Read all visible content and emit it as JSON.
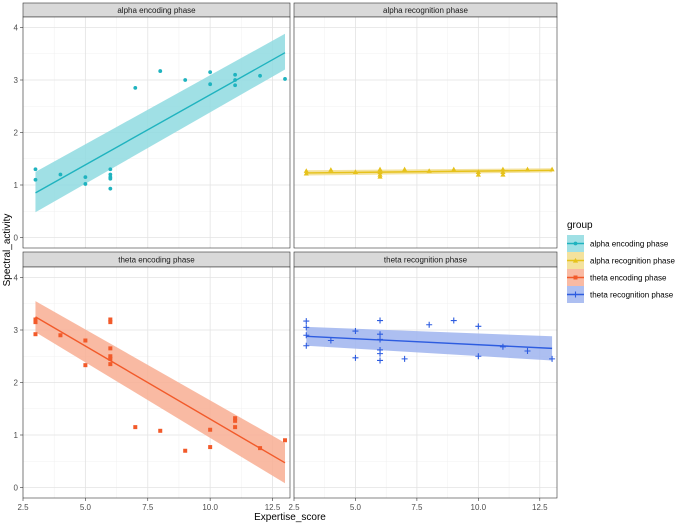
{
  "chart_data": {
    "type": "scatter",
    "facet_type": "scatter-with-linear-fit",
    "xlabel": "Expertise_score",
    "ylabel": "Spectral_activity",
    "xlim": [
      2.5,
      13.2
    ],
    "ylim": [
      -0.2,
      4.2
    ],
    "x_ticks": [
      "2.5",
      "5.0",
      "7.5",
      "10.0",
      "12.5"
    ],
    "y_ticks": [
      "0",
      "1",
      "2",
      "3",
      "4"
    ],
    "grid": true,
    "legend": {
      "title": "group",
      "position": "right",
      "entries": [
        "alpha encoding phase",
        "alpha recognition phase",
        "theta encoding phase",
        "theta recognition phase"
      ]
    },
    "panels": [
      {
        "name": "alpha encoding phase",
        "color": "#1fb3bf",
        "fill": "#8fdbe0",
        "marker": "circle",
        "fit": {
          "x": [
            3,
            13
          ],
          "y": [
            0.85,
            3.52
          ],
          "ci_low": [
            0.48,
            3.2
          ],
          "ci_high": [
            1.25,
            3.88
          ]
        },
        "points": [
          [
            3,
            1.1
          ],
          [
            3,
            1.3
          ],
          [
            4,
            1.2
          ],
          [
            5,
            1.15
          ],
          [
            5,
            1.02
          ],
          [
            6,
            1.3
          ],
          [
            6,
            1.2
          ],
          [
            6,
            1.15
          ],
          [
            6,
            1.12
          ],
          [
            6,
            0.93
          ],
          [
            7,
            2.85
          ],
          [
            8,
            3.17
          ],
          [
            9,
            3.0
          ],
          [
            10,
            3.15
          ],
          [
            10,
            2.92
          ],
          [
            11,
            3.1
          ],
          [
            11,
            2.9
          ],
          [
            11,
            3.0
          ],
          [
            12,
            3.08
          ],
          [
            13,
            3.02
          ]
        ]
      },
      {
        "name": "alpha recognition phase",
        "color": "#e6c21b",
        "fill": "#f2dd8c",
        "marker": "triangle",
        "fit": {
          "x": [
            3,
            13
          ],
          "y": [
            1.23,
            1.28
          ],
          "ci_low": [
            1.18,
            1.24
          ],
          "ci_high": [
            1.28,
            1.32
          ]
        },
        "points": [
          [
            3,
            1.27
          ],
          [
            3,
            1.22
          ],
          [
            4,
            1.29
          ],
          [
            5,
            1.25
          ],
          [
            6,
            1.3
          ],
          [
            6,
            1.25
          ],
          [
            6,
            1.2
          ],
          [
            6,
            1.16
          ],
          [
            7,
            1.3
          ],
          [
            8,
            1.27
          ],
          [
            9,
            1.3
          ],
          [
            10,
            1.25
          ],
          [
            10,
            1.2
          ],
          [
            11,
            1.3
          ],
          [
            11,
            1.25
          ],
          [
            11,
            1.2
          ],
          [
            12,
            1.3
          ],
          [
            13,
            1.3
          ]
        ]
      },
      {
        "name": "theta encoding phase",
        "color": "#f25a2a",
        "fill": "#f8ae93",
        "marker": "square",
        "fit": {
          "x": [
            3,
            13
          ],
          "y": [
            3.25,
            0.47
          ],
          "ci_low": [
            2.96,
            0.08
          ],
          "ci_high": [
            3.55,
            0.85
          ]
        },
        "points": [
          [
            3,
            3.2
          ],
          [
            3,
            3.15
          ],
          [
            3,
            2.92
          ],
          [
            4,
            2.9
          ],
          [
            5,
            2.8
          ],
          [
            5,
            2.33
          ],
          [
            6,
            3.2
          ],
          [
            6,
            3.15
          ],
          [
            6,
            2.65
          ],
          [
            6,
            2.5
          ],
          [
            6,
            2.45
          ],
          [
            6,
            2.35
          ],
          [
            7,
            1.15
          ],
          [
            8,
            1.08
          ],
          [
            9,
            0.7
          ],
          [
            10,
            1.1
          ],
          [
            10,
            0.77
          ],
          [
            11,
            1.32
          ],
          [
            11,
            1.27
          ],
          [
            11,
            1.15
          ],
          [
            12,
            0.75
          ],
          [
            13,
            0.9
          ]
        ]
      },
      {
        "name": "theta recognition phase",
        "color": "#2d5ce0",
        "fill": "#9fb4ee",
        "marker": "plus",
        "fit": {
          "x": [
            3,
            13
          ],
          "y": [
            2.88,
            2.65
          ],
          "ci_low": [
            2.7,
            2.42
          ],
          "ci_high": [
            3.06,
            2.88
          ]
        },
        "points": [
          [
            3,
            3.17
          ],
          [
            3,
            3.05
          ],
          [
            3,
            2.9
          ],
          [
            3,
            2.7
          ],
          [
            4,
            2.8
          ],
          [
            5,
            2.98
          ],
          [
            5,
            2.47
          ],
          [
            6,
            3.18
          ],
          [
            6,
            2.92
          ],
          [
            6,
            2.82
          ],
          [
            6,
            2.62
          ],
          [
            6,
            2.55
          ],
          [
            6,
            2.42
          ],
          [
            7,
            2.45
          ],
          [
            8,
            3.1
          ],
          [
            9,
            3.18
          ],
          [
            10,
            3.07
          ],
          [
            10,
            2.5
          ],
          [
            11,
            2.68
          ],
          [
            12,
            2.6
          ],
          [
            13,
            2.45
          ]
        ]
      }
    ]
  }
}
